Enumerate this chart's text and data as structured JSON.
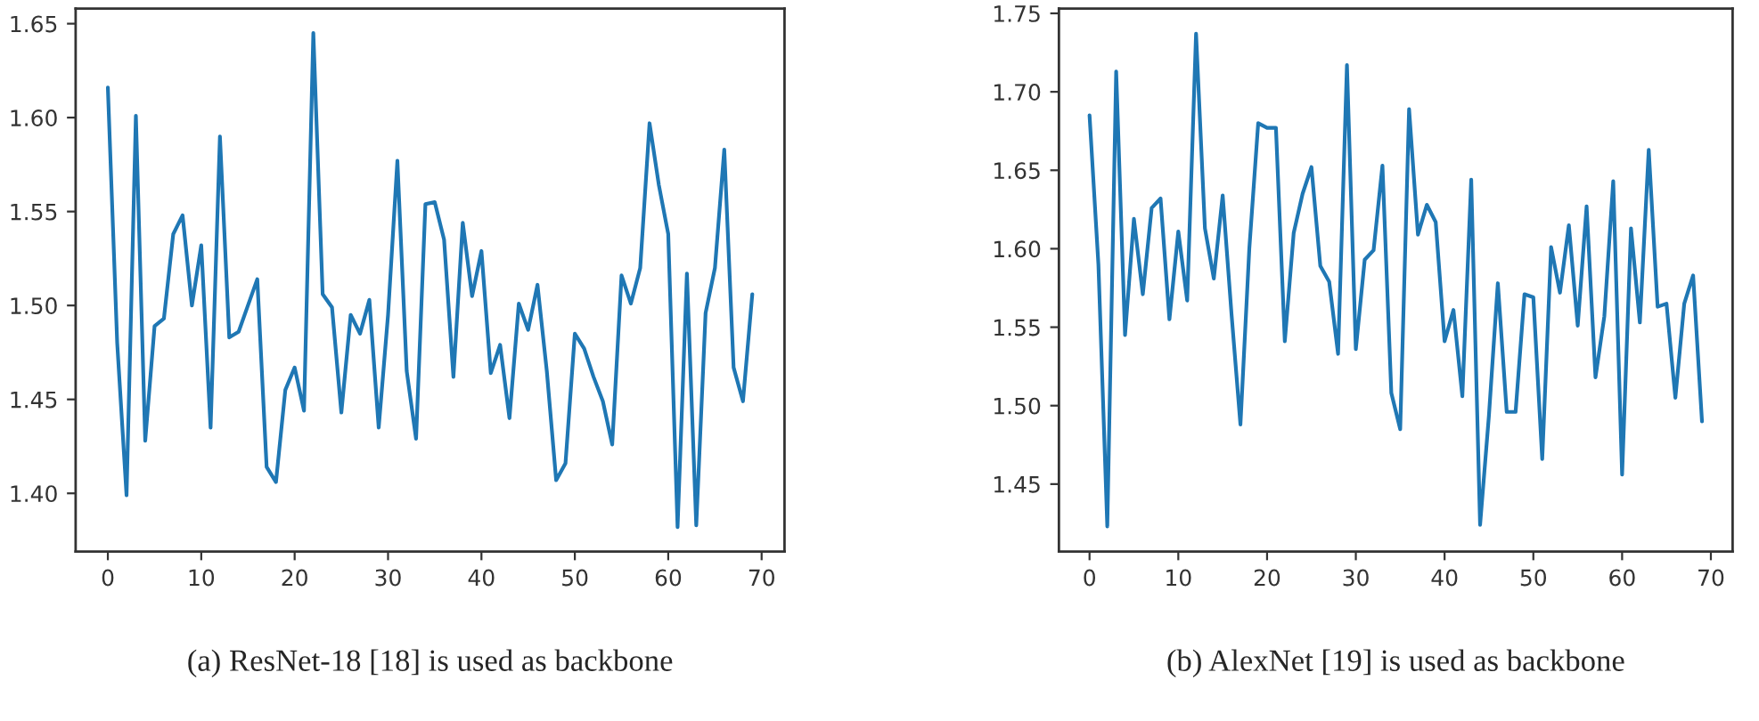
{
  "chart_data": [
    {
      "type": "line",
      "annotations": [
        "(a) ResNet-18 [18] is used as backbone"
      ],
      "x": [
        0,
        1,
        2,
        3,
        4,
        5,
        6,
        7,
        8,
        9,
        10,
        11,
        12,
        13,
        14,
        15,
        16,
        17,
        18,
        19,
        20,
        21,
        22,
        23,
        24,
        25,
        26,
        27,
        28,
        29,
        30,
        31,
        32,
        33,
        34,
        35,
        36,
        37,
        38,
        39,
        40,
        41,
        42,
        43,
        44,
        45,
        46,
        47,
        48,
        49,
        50,
        51,
        52,
        53,
        54,
        55,
        56,
        57,
        58,
        59,
        60,
        61,
        62,
        63,
        64,
        65,
        66,
        67,
        68,
        69
      ],
      "series": [
        {
          "color": "#1f77b4",
          "values": [
            1.616,
            1.48,
            1.399,
            1.601,
            1.428,
            1.489,
            1.493,
            1.538,
            1.548,
            1.5,
            1.532,
            1.435,
            1.59,
            1.483,
            1.486,
            1.5,
            1.514,
            1.414,
            1.406,
            1.455,
            1.467,
            1.444,
            1.645,
            1.506,
            1.499,
            1.443,
            1.495,
            1.485,
            1.503,
            1.435,
            1.495,
            1.577,
            1.465,
            1.429,
            1.554,
            1.555,
            1.535,
            1.462,
            1.544,
            1.505,
            1.529,
            1.464,
            1.479,
            1.44,
            1.501,
            1.487,
            1.511,
            1.465,
            1.407,
            1.416,
            1.485,
            1.477,
            1.462,
            1.449,
            1.426,
            1.516,
            1.501,
            1.52,
            1.597,
            1.564,
            1.538,
            1.382,
            1.517,
            1.383,
            1.496,
            1.52,
            1.583,
            1.467,
            1.449,
            1.506
          ]
        }
      ],
      "xlim": [
        -3.45,
        72.45
      ],
      "xticks": [
        0,
        10,
        20,
        30,
        40,
        50,
        60,
        70
      ],
      "ylim": [
        1.369,
        1.658
      ],
      "yticks": [
        {
          "value": 1.4,
          "label": "1.40"
        },
        {
          "value": 1.45,
          "label": "1.45"
        },
        {
          "value": 1.5,
          "label": "1.50"
        },
        {
          "value": 1.55,
          "label": "1.55"
        },
        {
          "value": 1.6,
          "label": "1.60"
        },
        {
          "value": 1.65,
          "label": "1.65"
        }
      ],
      "grid": false
    },
    {
      "type": "line",
      "annotations": [
        "(b) AlexNet [19] is used as backbone"
      ],
      "x": [
        0,
        1,
        2,
        3,
        4,
        5,
        6,
        7,
        8,
        9,
        10,
        11,
        12,
        13,
        14,
        15,
        16,
        17,
        18,
        19,
        20,
        21,
        22,
        23,
        24,
        25,
        26,
        27,
        28,
        29,
        30,
        31,
        32,
        33,
        34,
        35,
        36,
        37,
        38,
        39,
        40,
        41,
        42,
        43,
        44,
        45,
        46,
        47,
        48,
        49,
        50,
        51,
        52,
        53,
        54,
        55,
        56,
        57,
        58,
        59,
        60,
        61,
        62,
        63,
        64,
        65,
        66,
        67,
        68,
        69
      ],
      "series": [
        {
          "color": "#1f77b4",
          "values": [
            1.685,
            1.59,
            1.423,
            1.713,
            1.545,
            1.619,
            1.571,
            1.626,
            1.632,
            1.555,
            1.611,
            1.567,
            1.737,
            1.613,
            1.581,
            1.634,
            1.558,
            1.488,
            1.6,
            1.68,
            1.677,
            1.677,
            1.541,
            1.61,
            1.635,
            1.652,
            1.589,
            1.579,
            1.533,
            1.717,
            1.536,
            1.593,
            1.599,
            1.653,
            1.508,
            1.485,
            1.689,
            1.609,
            1.628,
            1.617,
            1.541,
            1.561,
            1.506,
            1.644,
            1.424,
            1.494,
            1.578,
            1.496,
            1.496,
            1.571,
            1.569,
            1.466,
            1.601,
            1.572,
            1.615,
            1.551,
            1.627,
            1.518,
            1.557,
            1.643,
            1.456,
            1.613,
            1.553,
            1.663,
            1.563,
            1.565,
            1.505,
            1.565,
            1.583,
            1.49
          ]
        }
      ],
      "xlim": [
        -3.45,
        72.45
      ],
      "xticks": [
        0,
        10,
        20,
        30,
        40,
        50,
        60,
        70
      ],
      "ylim": [
        1.407,
        1.753
      ],
      "yticks": [
        {
          "value": 1.45,
          "label": "1.45"
        },
        {
          "value": 1.5,
          "label": "1.50"
        },
        {
          "value": 1.55,
          "label": "1.55"
        },
        {
          "value": 1.6,
          "label": "1.60"
        },
        {
          "value": 1.65,
          "label": "1.65"
        },
        {
          "value": 1.7,
          "label": "1.70"
        },
        {
          "value": 1.75,
          "label": "1.75"
        }
      ],
      "grid": false
    }
  ]
}
